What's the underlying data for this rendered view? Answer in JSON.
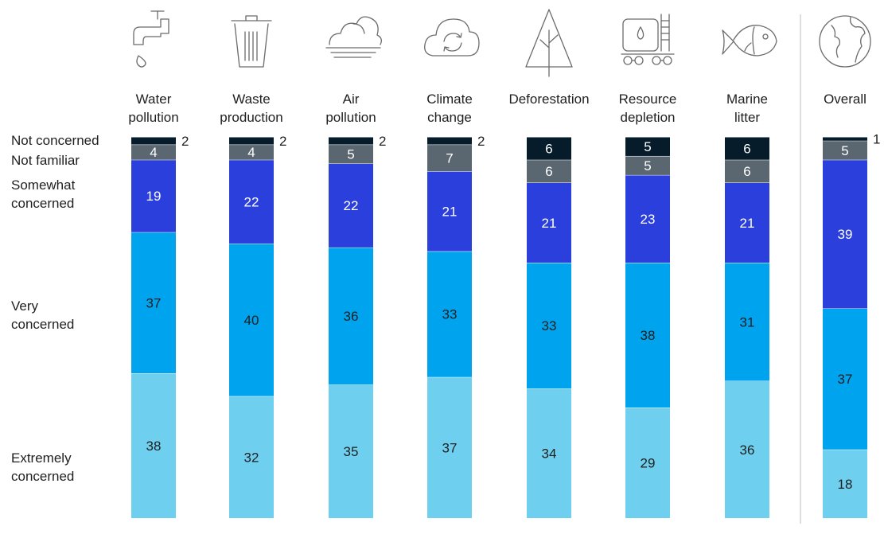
{
  "chart_data": {
    "type": "bar",
    "stacked": true,
    "title": "",
    "xlabel": "",
    "ylabel": "",
    "categories": [
      [
        "Water",
        "pollution"
      ],
      [
        "Waste",
        "production"
      ],
      [
        "Air",
        "pollution"
      ],
      [
        "Climate",
        "change"
      ],
      [
        "Deforestation"
      ],
      [
        "Resource",
        "depletion"
      ],
      [
        "Marine",
        "litter"
      ],
      [
        "Overall"
      ]
    ],
    "icons": [
      "faucet-icon",
      "trash-bin-icon",
      "cloud-fog-icon",
      "cloud-cycle-icon",
      "tree-icon",
      "tank-car-icon",
      "fish-icon",
      "globe-icon"
    ],
    "series": [
      {
        "name": "Extremely concerned",
        "label_lines": [
          "Extremely",
          "concerned"
        ],
        "color": "#6fcfef",
        "text_color": "#1f1f1f",
        "values": [
          38,
          32,
          35,
          37,
          34,
          29,
          36,
          18
        ]
      },
      {
        "name": "Very concerned",
        "label_lines": [
          "Very",
          "concerned"
        ],
        "color": "#00a3ee",
        "text_color": "#1f1f1f",
        "values": [
          37,
          40,
          36,
          33,
          33,
          38,
          31,
          37
        ]
      },
      {
        "name": "Somewhat concerned",
        "label_lines": [
          "Somewhat",
          "concerned"
        ],
        "color": "#2a3fdc",
        "text_color": "#ffffff",
        "values": [
          19,
          22,
          22,
          21,
          21,
          23,
          21,
          39
        ]
      },
      {
        "name": "Not familiar",
        "label_lines": [
          "Not familiar"
        ],
        "color": "#5b6770",
        "text_color": "#ffffff",
        "values": [
          4,
          4,
          5,
          7,
          6,
          5,
          6,
          5
        ]
      },
      {
        "name": "Not concerned",
        "label_lines": [
          "Not concerned"
        ],
        "color": "#061c2b",
        "text_color": "#ffffff",
        "values": [
          2,
          2,
          2,
          2,
          6,
          5,
          6,
          1
        ]
      }
    ],
    "legend_position": "left",
    "separator_before_last": true,
    "grid": false,
    "ylim": [
      0,
      100
    ]
  }
}
